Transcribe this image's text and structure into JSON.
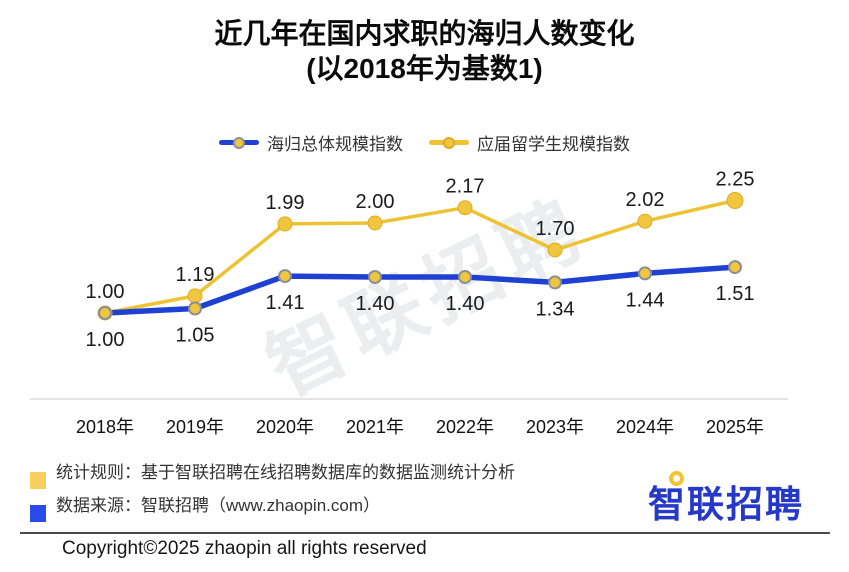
{
  "title": {
    "line1": "近几年在国内求职的海归人数变化",
    "line2": "(以2018年为基数1)"
  },
  "legend": {
    "items": [
      {
        "label": "海归总体规模指数"
      },
      {
        "label": "应届留学生规模指数"
      }
    ]
  },
  "chart_data": {
    "type": "line",
    "title": "近几年在国内求职的海归人数变化 (以2018年为基数1)",
    "categories": [
      "2018年",
      "2019年",
      "2020年",
      "2021年",
      "2022年",
      "2023年",
      "2024年",
      "2025年"
    ],
    "series": [
      {
        "name": "海归总体规模指数",
        "color": "#1E41D3",
        "values": [
          1.0,
          1.05,
          1.41,
          1.4,
          1.4,
          1.34,
          1.44,
          1.51
        ],
        "data_labels": "below"
      },
      {
        "name": "应届留学生规模指数",
        "color": "#EFC233",
        "values": [
          1.0,
          1.19,
          1.99,
          2.0,
          2.17,
          1.7,
          2.02,
          2.25
        ],
        "data_labels": "above"
      }
    ],
    "xlabel": "",
    "ylabel": "",
    "ylim": [
      0.85,
      2.45
    ],
    "grid": false,
    "legend_position": "top",
    "baseline_note": "2018年 = 1"
  },
  "watermark": "智联招聘",
  "footer": {
    "notes": [
      {
        "bullet_color": "#F7CF5E",
        "text": "统计规则：基于智联招聘在线招聘数据库的数据监测统计分析"
      },
      {
        "bullet_color": "#2A4BE8",
        "text": "数据来源：智联招聘（www.zhaopin.com）"
      }
    ],
    "logo_text": "智联招聘",
    "copyright": "Copyright©2025 zhaopin all rights reserved"
  },
  "colors": {
    "series_returnees": "#1E41D3",
    "series_graduates": "#EFC233",
    "marker_fill": "#F0C63E",
    "marker_ring_blue": "#8A9097",
    "marker_ring_yellow": "#E0AB22",
    "axis_line": "#DCDCDC",
    "logo_blue": "#2638C8",
    "logo_accent_yellow": "#F5C332"
  }
}
